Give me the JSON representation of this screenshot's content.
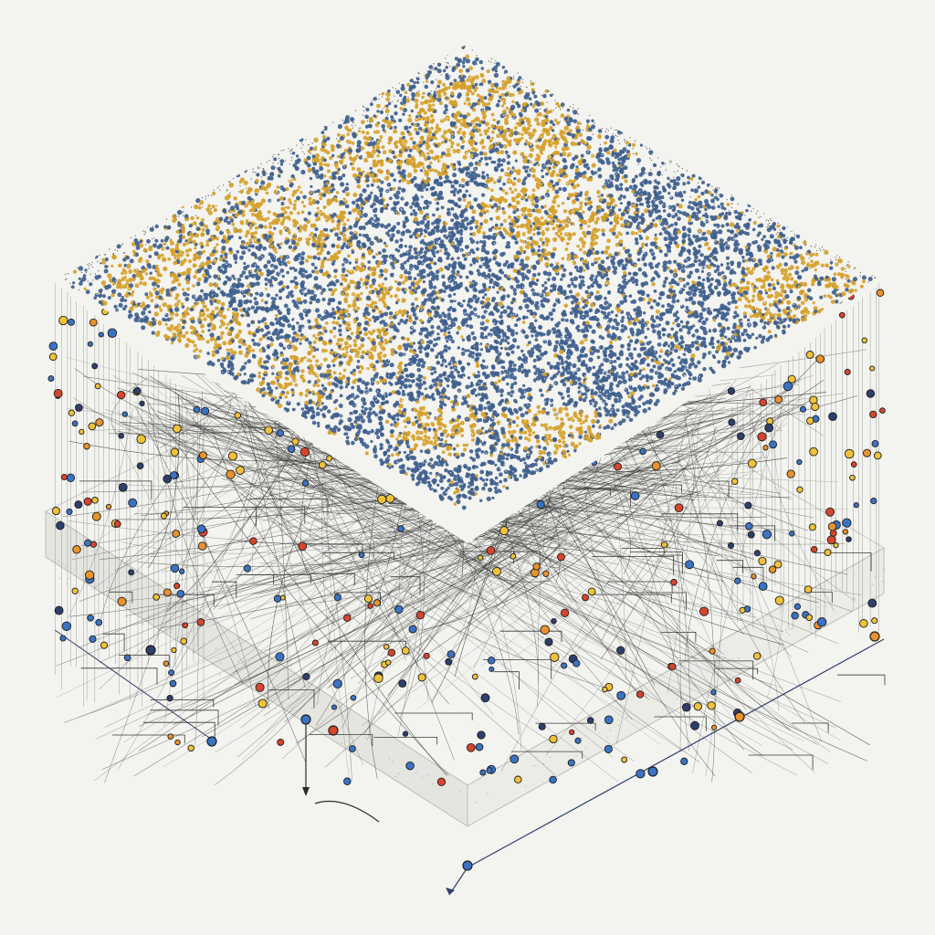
{
  "illustration": {
    "style": "isometric-layered-network",
    "palette": {
      "background": "#f3f3ef",
      "surface_blue": "#3f5f8e",
      "surface_gold": "#d6a12a",
      "node_blue": "#3b73c4",
      "node_yellow": "#efc23a",
      "node_orange": "#e8932d",
      "node_red": "#d8452f",
      "node_navy": "#2e3f6b",
      "wire": "#2a2a2a",
      "base_dots": "#b9b9b4"
    },
    "layers": [
      "top-surface",
      "connection-web",
      "node-field",
      "base-plate"
    ]
  }
}
